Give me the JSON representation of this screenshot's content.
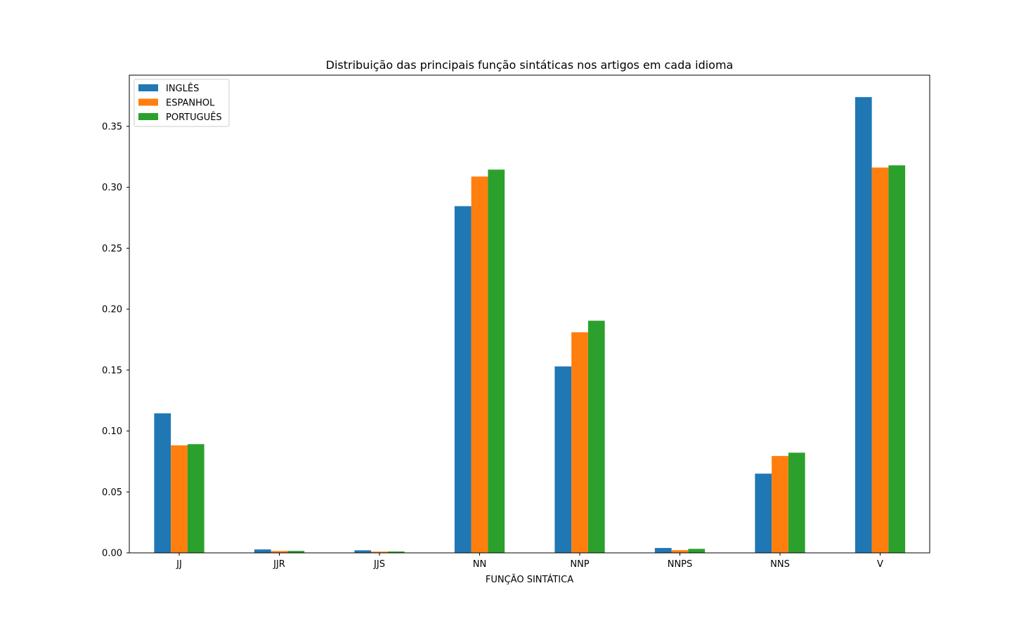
{
  "chart_data": {
    "type": "bar",
    "title": "Distribuição das principais função sintáticas nos artigos em cada idioma",
    "xlabel": "FUNÇÃO SINTÁTICA",
    "ylabel": "",
    "categories": [
      "JJ",
      "JJR",
      "JJS",
      "NN",
      "NNP",
      "NNPS",
      "NNS",
      "V"
    ],
    "ylim": [
      0,
      0.392
    ],
    "yticks": [
      0.0,
      0.05,
      0.1,
      0.15,
      0.2,
      0.25,
      0.3,
      0.35
    ],
    "ytick_labels": [
      "0.00",
      "0.05",
      "0.10",
      "0.15",
      "0.20",
      "0.25",
      "0.30",
      "0.35"
    ],
    "grid": false,
    "legend_position": "top-left",
    "series": [
      {
        "name": "INGLÊS",
        "color": "#1f77b4",
        "values": [
          0.1145,
          0.0028,
          0.0021,
          0.2845,
          0.153,
          0.004,
          0.065,
          0.374
        ]
      },
      {
        "name": "ESPANHOL",
        "color": "#ff7f0e",
        "values": [
          0.0882,
          0.0015,
          0.001,
          0.3088,
          0.181,
          0.0022,
          0.0795,
          0.3162
        ]
      },
      {
        "name": "PORTUGUÊS",
        "color": "#2ca02c",
        "values": [
          0.0892,
          0.0016,
          0.0011,
          0.3145,
          0.1905,
          0.0033,
          0.0822,
          0.318
        ]
      }
    ]
  }
}
